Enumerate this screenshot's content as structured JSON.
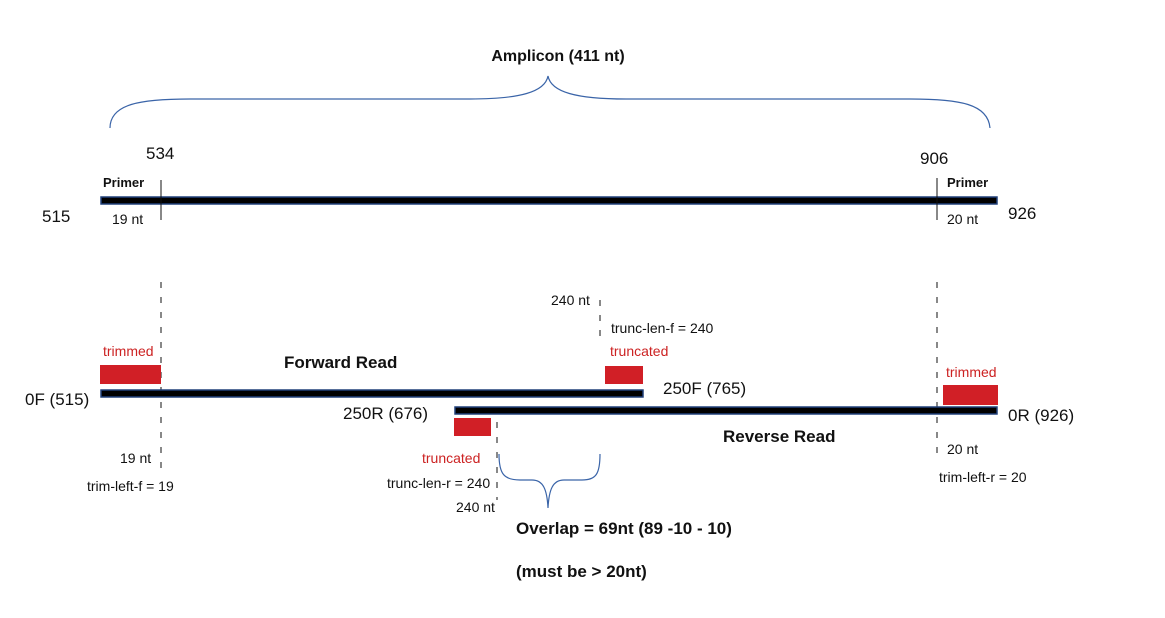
{
  "amplicon": {
    "title": "Amplicon (411 nt)",
    "start": "515",
    "end": "926",
    "forward_primer": {
      "label": "Primer",
      "position": "534",
      "length": "19 nt"
    },
    "reverse_primer": {
      "label": "Primer",
      "position": "906",
      "length": "20 nt"
    }
  },
  "forward_read": {
    "title": "Forward Read",
    "start_label": "0F (515)",
    "end_label": "250F (765)",
    "trimmed_label": "trimmed",
    "trim_length": "19 nt",
    "trim_param": "trim-left-f = 19",
    "truncated_label": "truncated",
    "trunc_length": "240 nt",
    "trunc_param": "trunc-len-f = 240"
  },
  "reverse_read": {
    "title": "Reverse Read",
    "start_label": "0R (926)",
    "end_label": "250R (676)",
    "trimmed_label": "trimmed",
    "trim_length": "20 nt",
    "trim_param": "trim-left-r = 20",
    "truncated_label": "truncated",
    "trunc_length": "240 nt",
    "trunc_param": "trunc-len-r = 240"
  },
  "overlap": {
    "label": "Overlap = 69nt (89 -10 - 10)",
    "note": "(must be > 20nt)"
  },
  "colors": {
    "bar": "#000000",
    "bar_outline": "#20407a",
    "highlight": "#d11f26",
    "highlight_text": "#cc2222",
    "brace": "#3a64a8"
  }
}
